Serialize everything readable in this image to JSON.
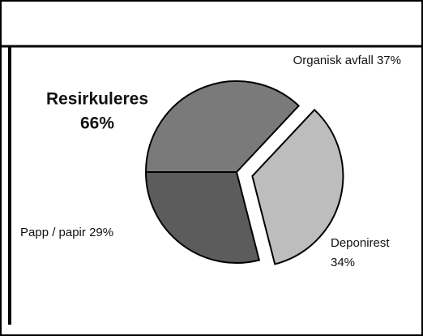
{
  "chart_data": {
    "type": "pie",
    "categories": [
      "Organisk avfall",
      "Deponirest",
      "Papp / papir"
    ],
    "values": [
      37,
      34,
      29
    ],
    "value_labels": [
      "37%",
      "34%",
      "29%"
    ],
    "colors": [
      "#7a7a7a",
      "#bdbdbd",
      "#5c5c5c"
    ],
    "exploded": "Deponirest",
    "annotation": "Resirkuleres",
    "annotation_value": "66%"
  }
}
